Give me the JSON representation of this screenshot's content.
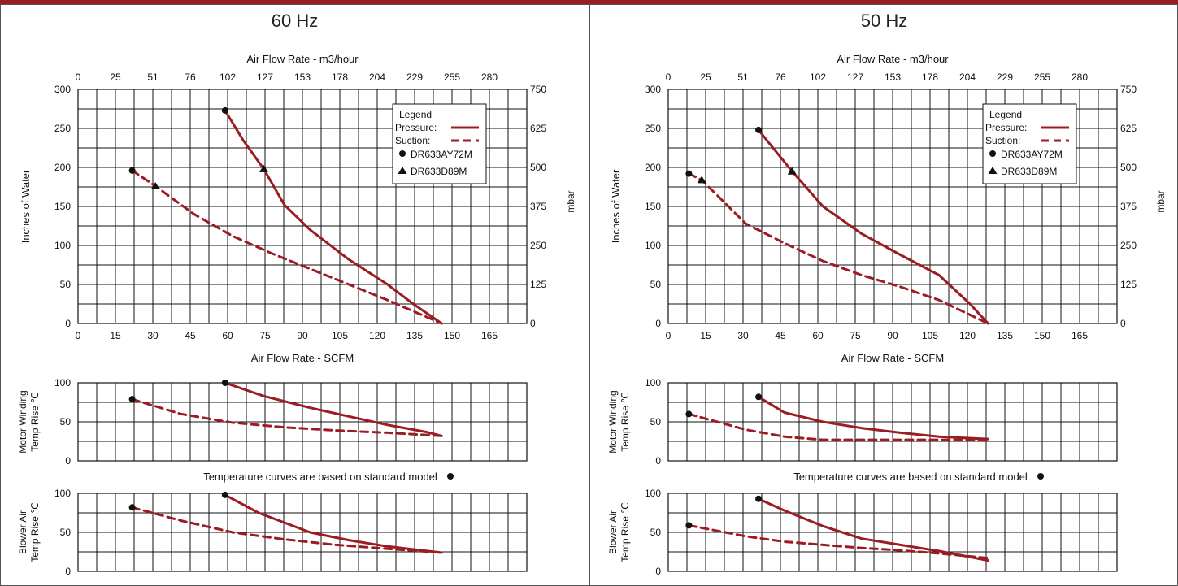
{
  "header": {
    "left_title": "60 Hz",
    "right_title": "50 Hz"
  },
  "colors": {
    "curve": "#9b1c23",
    "grid": "#111111",
    "marker": "#111111",
    "top_bar": "#9b1c23"
  },
  "chart_data": [
    {
      "panel": "60 Hz",
      "type": "line",
      "xlabel": "Air Flow Rate - SCFM",
      "x2label": "Air Flow Rate - m3/hour",
      "ylabel": "Inches of Water",
      "y2label": "mbar",
      "xlim": [
        0,
        174
      ],
      "ylim": [
        0,
        300
      ],
      "x_ticks": [
        "0",
        "15",
        "30",
        "45",
        "60",
        "75",
        "90",
        "105",
        "120",
        "135",
        "150",
        "165"
      ],
      "x2_ticks": [
        "0",
        "25",
        "51",
        "76",
        "102",
        "127",
        "153",
        "178",
        "204",
        "229",
        "255",
        "280"
      ],
      "y_ticks": [
        "0",
        "50",
        "100",
        "150",
        "200",
        "250",
        "300"
      ],
      "y2_ticks": [
        "0",
        "125",
        "250",
        "375",
        "500",
        "625",
        "750"
      ],
      "grid": true,
      "legend": {
        "title": "Legend",
        "pressure_label": "Pressure:",
        "suction_label": "Suction:",
        "marker1_label": "DR633AY72M",
        "marker2_label": "DR633D89M"
      },
      "series": [
        {
          "name": "Pressure",
          "style": "solid",
          "points": [
            [
              57,
              273
            ],
            [
              64,
              235
            ],
            [
              72,
              198
            ],
            [
              80,
              152
            ],
            [
              90,
              120
            ],
            [
              105,
              82
            ],
            [
              120,
              50
            ],
            [
              130,
              25
            ],
            [
              141,
              0
            ]
          ]
        },
        {
          "name": "Suction",
          "style": "dashed",
          "points": [
            [
              21,
              196
            ],
            [
              30,
              176
            ],
            [
              45,
              140
            ],
            [
              60,
              112
            ],
            [
              75,
              90
            ],
            [
              90,
              70
            ],
            [
              105,
              50
            ],
            [
              120,
              30
            ],
            [
              141,
              0
            ]
          ]
        }
      ],
      "markers": [
        {
          "label": "DR633AY72M",
          "shape": "circle",
          "points": [
            [
              21,
              196
            ],
            [
              57,
              273
            ]
          ]
        },
        {
          "label": "DR633D89M",
          "shape": "triangle",
          "points": [
            [
              30,
              176
            ],
            [
              72,
              198
            ]
          ]
        }
      ],
      "sub_charts": [
        {
          "ylabel_line1": "Motor Winding",
          "ylabel_line2": "Temp Rise ℃",
          "ylim": [
            0,
            100
          ],
          "y_ticks": [
            "0",
            "50",
            "100"
          ],
          "series": [
            {
              "name": "Pressure",
              "style": "solid",
              "points": [
                [
                  57,
                  100
                ],
                [
                  72,
                  83
                ],
                [
                  90,
                  68
                ],
                [
                  105,
                  57
                ],
                [
                  120,
                  46
                ],
                [
                  135,
                  37
                ],
                [
                  141,
                  32
                ]
              ]
            },
            {
              "name": "Suction",
              "style": "dashed",
              "points": [
                [
                  21,
                  79
                ],
                [
                  40,
                  60
                ],
                [
                  60,
                  49
                ],
                [
                  80,
                  43
                ],
                [
                  100,
                  39
                ],
                [
                  120,
                  36
                ],
                [
                  141,
                  32
                ]
              ]
            }
          ],
          "markers": [
            [
              21,
              79
            ],
            [
              57,
              100
            ]
          ]
        },
        {
          "ylabel_line1": "Blower Air",
          "ylabel_line2": "Temp Rise ℃",
          "ylim": [
            0,
            100
          ],
          "y_ticks": [
            "0",
            "50",
            "100"
          ],
          "series": [
            {
              "name": "Pressure",
              "style": "solid",
              "points": [
                [
                  57,
                  98
                ],
                [
                  70,
                  75
                ],
                [
                  90,
                  50
                ],
                [
                  105,
                  40
                ],
                [
                  120,
                  32
                ],
                [
                  141,
                  24
                ]
              ]
            },
            {
              "name": "Suction",
              "style": "dashed",
              "points": [
                [
                  21,
                  82
                ],
                [
                  40,
                  65
                ],
                [
                  60,
                  50
                ],
                [
                  80,
                  41
                ],
                [
                  100,
                  34
                ],
                [
                  120,
                  29
                ],
                [
                  141,
                  24
                ]
              ]
            }
          ],
          "markers": [
            [
              21,
              82
            ],
            [
              57,
              98
            ]
          ]
        }
      ],
      "note": "Temperature curves are based on standard model"
    },
    {
      "panel": "50 Hz",
      "type": "line",
      "xlabel": "Air Flow Rate - SCFM",
      "x2label": "Air Flow Rate - m3/hour",
      "ylabel": "Inches of Water",
      "y2label": "mbar",
      "xlim": [
        0,
        174
      ],
      "ylim": [
        0,
        300
      ],
      "x_ticks": [
        "0",
        "15",
        "30",
        "45",
        "60",
        "75",
        "90",
        "105",
        "120",
        "135",
        "150",
        "165"
      ],
      "x2_ticks": [
        "0",
        "25",
        "51",
        "76",
        "102",
        "127",
        "153",
        "178",
        "204",
        "229",
        "255",
        "280"
      ],
      "y_ticks": [
        "0",
        "50",
        "100",
        "150",
        "200",
        "250",
        "300"
      ],
      "y2_ticks": [
        "0",
        "125",
        "250",
        "375",
        "500",
        "625",
        "750"
      ],
      "grid": true,
      "legend": {
        "title": "Legend",
        "pressure_label": "Pressure:",
        "suction_label": "Suction:",
        "marker1_label": "DR633AY72M",
        "marker2_label": "DR633D89M"
      },
      "series": [
        {
          "name": "Pressure",
          "style": "solid",
          "points": [
            [
              35,
              248
            ],
            [
              48,
              195
            ],
            [
              60,
              150
            ],
            [
              75,
              115
            ],
            [
              90,
              88
            ],
            [
              105,
              62
            ],
            [
              117,
              25
            ],
            [
              124,
              0
            ]
          ]
        },
        {
          "name": "Suction",
          "style": "dashed",
          "points": [
            [
              8,
              192
            ],
            [
              13,
              184
            ],
            [
              30,
              128
            ],
            [
              45,
              103
            ],
            [
              60,
              80
            ],
            [
              75,
              62
            ],
            [
              90,
              47
            ],
            [
              105,
              30
            ],
            [
              124,
              0
            ]
          ]
        }
      ],
      "markers": [
        {
          "label": "DR633AY72M",
          "shape": "circle",
          "points": [
            [
              8,
              192
            ],
            [
              35,
              248
            ]
          ]
        },
        {
          "label": "DR633D89M",
          "shape": "triangle",
          "points": [
            [
              13,
              184
            ],
            [
              48,
              195
            ]
          ]
        }
      ],
      "sub_charts": [
        {
          "ylabel_line1": "Motor Winding",
          "ylabel_line2": "Temp Rise ℃",
          "ylim": [
            0,
            100
          ],
          "y_ticks": [
            "0",
            "50",
            "100"
          ],
          "series": [
            {
              "name": "Pressure",
              "style": "solid",
              "points": [
                [
                  35,
                  82
                ],
                [
                  45,
                  62
                ],
                [
                  60,
                  50
                ],
                [
                  75,
                  42
                ],
                [
                  90,
                  36
                ],
                [
                  105,
                  31
                ],
                [
                  124,
                  28
                ]
              ]
            },
            {
              "name": "Suction",
              "style": "dashed",
              "points": [
                [
                  8,
                  60
                ],
                [
                  30,
                  40
                ],
                [
                  45,
                  31
                ],
                [
                  60,
                  27
                ],
                [
                  90,
                  27
                ],
                [
                  124,
                  27
                ]
              ]
            }
          ],
          "markers": [
            [
              8,
              60
            ],
            [
              35,
              82
            ]
          ]
        },
        {
          "ylabel_line1": "Blower Air",
          "ylabel_line2": "Temp Rise ℃",
          "ylim": [
            0,
            100
          ],
          "y_ticks": [
            "0",
            "50",
            "100"
          ],
          "series": [
            {
              "name": "Pressure",
              "style": "solid",
              "points": [
                [
                  35,
                  93
                ],
                [
                  45,
                  78
                ],
                [
                  60,
                  58
                ],
                [
                  75,
                  42
                ],
                [
                  90,
                  34
                ],
                [
                  105,
                  26
                ],
                [
                  124,
                  14
                ]
              ]
            },
            {
              "name": "Suction",
              "style": "dashed",
              "points": [
                [
                  8,
                  59
                ],
                [
                  30,
                  45
                ],
                [
                  45,
                  38
                ],
                [
                  60,
                  34
                ],
                [
                  75,
                  30
                ],
                [
                  90,
                  27
                ],
                [
                  105,
                  23
                ],
                [
                  124,
                  17
                ]
              ]
            }
          ],
          "markers": [
            [
              8,
              59
            ],
            [
              35,
              93
            ]
          ]
        }
      ],
      "note": "Temperature curves are based on standard model"
    }
  ]
}
